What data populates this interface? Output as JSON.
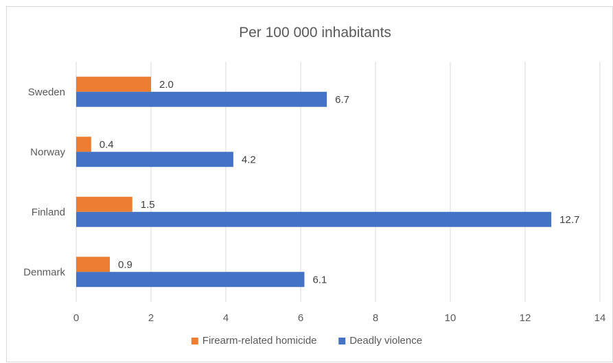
{
  "chart_data": {
    "type": "bar",
    "orientation": "horizontal",
    "title": "Per 100 000 inhabitants",
    "categories": [
      "Sweden",
      "Norway",
      "Finland",
      "Denmark"
    ],
    "series": [
      {
        "name": "Firearm-related homicide",
        "values": [
          2.0,
          0.4,
          1.5,
          0.9
        ],
        "labels": [
          "2.0",
          "0.4",
          "1.5",
          "0.9"
        ],
        "color": "#ed7d31"
      },
      {
        "name": "Deadly violence",
        "values": [
          6.7,
          4.2,
          12.7,
          6.1
        ],
        "labels": [
          "6.7",
          "4.2",
          "12.7",
          "6.1"
        ],
        "color": "#4472c4"
      }
    ],
    "xlim": [
      0,
      14
    ],
    "x_ticks": [
      "0",
      "2",
      "4",
      "6",
      "8",
      "10",
      "12",
      "14"
    ],
    "xlabel": "",
    "ylabel": "",
    "grid": true,
    "legend_position": "bottom",
    "gridline_color": "#d9d9d9"
  }
}
